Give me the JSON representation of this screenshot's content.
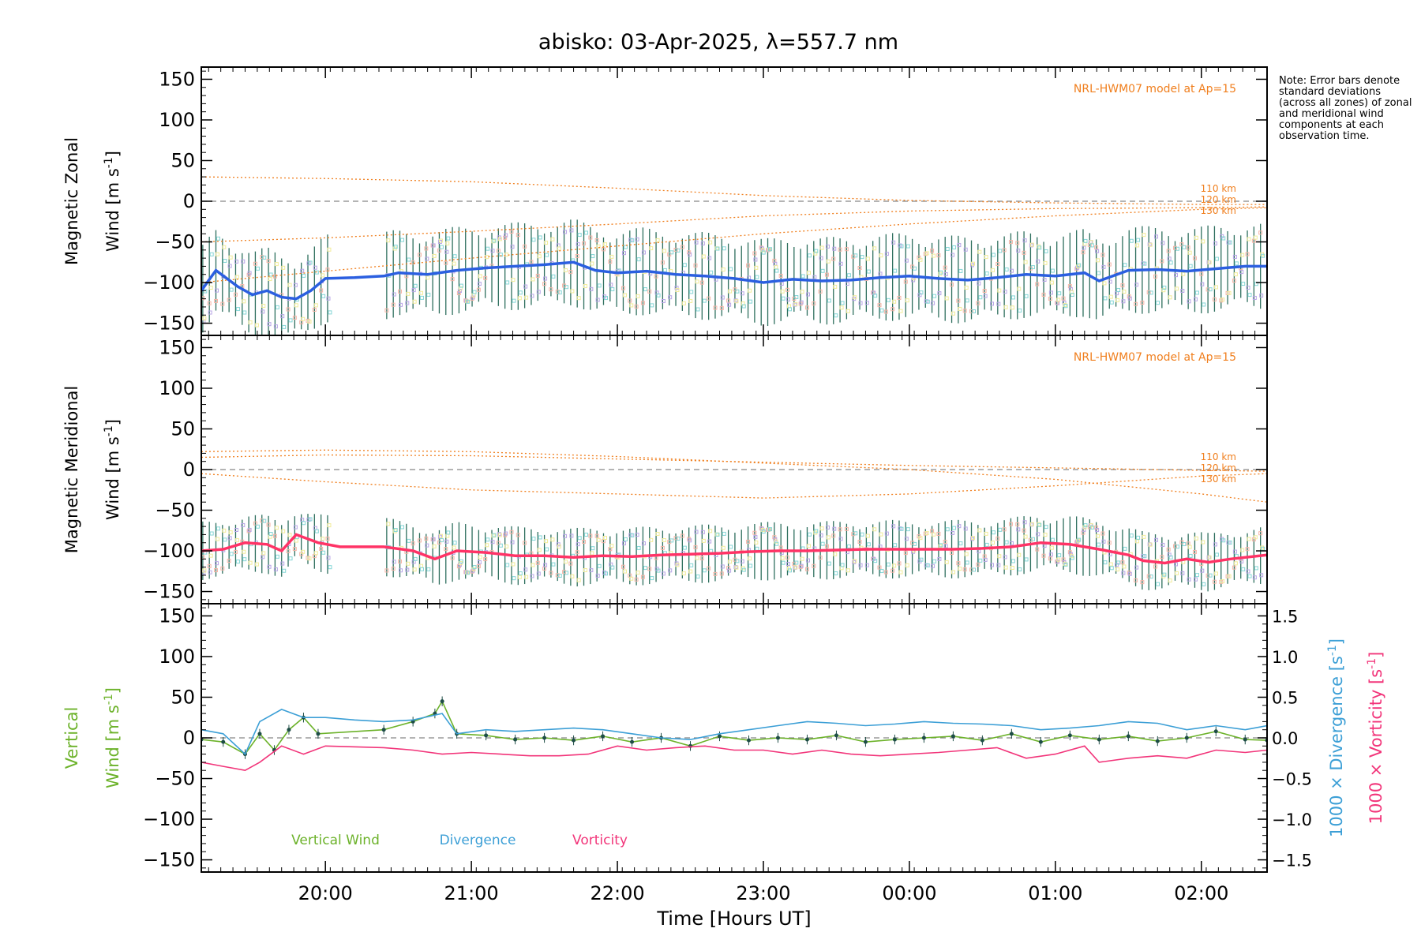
{
  "title": "abisko: 03-Apr-2025, λ=557.7 nm",
  "note": "Note: Error bars denote standard deviations (across all zones) of zonal and meridional wind components at each observation time.",
  "colors": {
    "model": "#f07f1e",
    "zonal_line": "#2b5fe0",
    "meridional_line": "#ff3366",
    "vertical": "#6cb22a",
    "divergence": "#3c9fd6",
    "vorticity": "#f2357a",
    "zero_line": "#888888",
    "error_bar": "#2e6f5e",
    "zone_pink": "#f6b6a8",
    "zone_purple": "#b8a6e6",
    "zone_yellow": "#f2ec9a",
    "zone_cyan": "#86d6d6"
  },
  "chart_data": [
    {
      "type": "line",
      "panel": "zonal",
      "ylabel_line1": "Magnetic Zonal",
      "ylabel_line2": "Wind [m s",
      "ylabel_sup": "-1",
      "ylabel_close": "]",
      "ylim": [
        -165,
        165
      ],
      "yticks": [
        150,
        100,
        50,
        0,
        -50,
        -100,
        -150
      ],
      "model_label": "NRL-HWM07 model at Ap=15",
      "model_series": [
        {
          "name": "110 km",
          "x": [
            19.15,
            20,
            21,
            22,
            23,
            24,
            25,
            26,
            26.45
          ],
          "values": [
            30,
            28,
            24,
            16,
            7,
            1,
            -2,
            -4,
            -4
          ]
        },
        {
          "name": "120 km",
          "x": [
            19.15,
            20,
            21,
            22,
            23,
            24,
            25,
            26,
            26.45
          ],
          "values": [
            -50,
            -45,
            -37,
            -28,
            -18,
            -12,
            -9,
            -8,
            -7
          ]
        },
        {
          "name": "130 km",
          "x": [
            19.15,
            20,
            21,
            22,
            23,
            24,
            25,
            26,
            26.45
          ],
          "values": [
            -100,
            -86,
            -70,
            -55,
            -40,
            -28,
            -18,
            -10,
            -8
          ]
        }
      ],
      "mean_series": {
        "name": "Zonal wind",
        "x": [
          19.15,
          19.25,
          19.4,
          19.5,
          19.6,
          19.7,
          19.8,
          19.9,
          20.0,
          20.2,
          20.4,
          20.5,
          20.7,
          20.9,
          21.1,
          21.3,
          21.5,
          21.7,
          21.85,
          22.0,
          22.2,
          22.4,
          22.6,
          22.8,
          23.0,
          23.2,
          23.4,
          23.6,
          23.8,
          24.0,
          24.2,
          24.4,
          24.6,
          24.8,
          25.0,
          25.2,
          25.3,
          25.5,
          25.7,
          25.9,
          26.1,
          26.3,
          26.45
        ],
        "values": [
          -110,
          -85,
          -105,
          -115,
          -110,
          -118,
          -120,
          -110,
          -95,
          -94,
          -92,
          -88,
          -90,
          -85,
          -82,
          -80,
          -78,
          -75,
          -85,
          -88,
          -86,
          -90,
          -92,
          -95,
          -100,
          -96,
          -98,
          -97,
          -94,
          -92,
          -95,
          -97,
          -94,
          -90,
          -92,
          -88,
          -98,
          -85,
          -84,
          -86,
          -83,
          -80,
          -80
        ]
      },
      "error_bar_half_width": 45
    },
    {
      "type": "line",
      "panel": "meridional",
      "ylabel_line1": "Magnetic Meridional",
      "ylabel_line2": "Wind [m s",
      "ylabel_sup": "-1",
      "ylabel_close": "]",
      "ylim": [
        -165,
        165
      ],
      "yticks": [
        150,
        100,
        50,
        0,
        -50,
        -100,
        -150
      ],
      "model_label": "NRL-HWM07 model at Ap=15",
      "model_series": [
        {
          "name": "110 km",
          "x": [
            19.15,
            20,
            21,
            22,
            23,
            24,
            25,
            26,
            26.45
          ],
          "values": [
            22,
            24,
            22,
            16,
            8,
            0,
            -12,
            -30,
            -40
          ]
        },
        {
          "name": "120 km",
          "x": [
            19.15,
            20,
            21,
            22,
            23,
            24,
            25,
            26,
            26.45
          ],
          "values": [
            15,
            18,
            17,
            13,
            9,
            5,
            2,
            -1,
            -2
          ]
        },
        {
          "name": "130 km",
          "x": [
            19.15,
            20,
            21,
            22,
            23,
            24,
            25,
            26,
            26.45
          ],
          "values": [
            -5,
            -15,
            -25,
            -30,
            -35,
            -30,
            -20,
            -8,
            -5
          ]
        }
      ],
      "mean_series": {
        "name": "Meridional wind",
        "x": [
          19.15,
          19.3,
          19.45,
          19.6,
          19.7,
          19.8,
          19.95,
          20.1,
          20.4,
          20.6,
          20.75,
          20.9,
          21.1,
          21.3,
          21.5,
          21.7,
          21.9,
          22.1,
          22.3,
          22.5,
          22.7,
          22.9,
          23.1,
          23.3,
          23.5,
          23.7,
          23.9,
          24.1,
          24.3,
          24.5,
          24.7,
          24.9,
          25.1,
          25.3,
          25.5,
          25.6,
          25.75,
          25.9,
          26.05,
          26.2,
          26.45
        ],
        "values": [
          -100,
          -98,
          -90,
          -92,
          -100,
          -80,
          -90,
          -95,
          -95,
          -100,
          -110,
          -100,
          -102,
          -106,
          -106,
          -108,
          -106,
          -107,
          -105,
          -104,
          -103,
          -101,
          -100,
          -100,
          -99,
          -98,
          -98,
          -98,
          -98,
          -97,
          -95,
          -90,
          -92,
          -98,
          -105,
          -112,
          -115,
          -110,
          -114,
          -110,
          -105
        ]
      },
      "error_bar_half_width": 30
    },
    {
      "type": "line",
      "panel": "vertical",
      "ylabel_line1": "Vertical",
      "ylabel_line2": "Wind [m s",
      "ylabel_sup": "-1",
      "ylabel_close": "]",
      "ylim": [
        -165,
        165
      ],
      "yticks": [
        150,
        100,
        50,
        0,
        -50,
        -100,
        -150
      ],
      "y2label_div": "1000 × Divergence [s",
      "y2label_vor": "1000 × Vorticity [s",
      "y2label_sup": "-1",
      "y2label_close": "]",
      "y2ticks": [
        1.5,
        1.0,
        0.5,
        0.0,
        -0.5,
        -1.0,
        -1.5
      ],
      "y2tick_labels": [
        "1.5",
        "1.0",
        "0.5",
        "0.0",
        "−0.5",
        "−1.0",
        "−1.5"
      ],
      "y2lim": [
        -1.65,
        1.65
      ],
      "legend": [
        "Vertical Wind",
        "Divergence",
        "Vorticity"
      ],
      "series": [
        {
          "name": "Vertical Wind",
          "x": [
            19.15,
            19.3,
            19.45,
            19.55,
            19.65,
            19.75,
            19.85,
            19.95,
            20.4,
            20.6,
            20.75,
            20.8,
            20.9,
            21.1,
            21.3,
            21.5,
            21.7,
            21.9,
            22.1,
            22.3,
            22.5,
            22.7,
            22.9,
            23.1,
            23.3,
            23.5,
            23.7,
            23.9,
            24.1,
            24.3,
            24.5,
            24.7,
            24.9,
            25.1,
            25.3,
            25.5,
            25.7,
            25.9,
            26.1,
            26.3,
            26.45
          ],
          "values": [
            -2,
            -5,
            -20,
            5,
            -15,
            10,
            25,
            5,
            10,
            20,
            30,
            45,
            5,
            3,
            -2,
            0,
            -3,
            2,
            -5,
            0,
            -10,
            2,
            -3,
            0,
            -2,
            3,
            -5,
            -2,
            0,
            2,
            -3,
            5,
            -5,
            3,
            -2,
            2,
            -4,
            0,
            8,
            -2,
            -3
          ]
        },
        {
          "name": "Divergence",
          "x": [
            19.15,
            19.3,
            19.45,
            19.55,
            19.7,
            19.85,
            20.0,
            20.2,
            20.4,
            20.6,
            20.8,
            20.9,
            21.1,
            21.3,
            21.5,
            21.7,
            21.9,
            22.1,
            22.3,
            22.5,
            22.7,
            22.9,
            23.1,
            23.3,
            23.5,
            23.7,
            23.9,
            24.1,
            24.3,
            24.5,
            24.7,
            24.9,
            25.1,
            25.3,
            25.5,
            25.7,
            25.9,
            26.1,
            26.3,
            26.45
          ],
          "values": [
            0.1,
            0.05,
            -0.2,
            0.2,
            0.35,
            0.25,
            0.25,
            0.22,
            0.2,
            0.22,
            0.3,
            0.05,
            0.1,
            0.08,
            0.1,
            0.12,
            0.1,
            0.05,
            0.0,
            -0.02,
            0.05,
            0.1,
            0.15,
            0.2,
            0.18,
            0.15,
            0.17,
            0.2,
            0.18,
            0.17,
            0.15,
            0.1,
            0.12,
            0.15,
            0.2,
            0.18,
            0.1,
            0.15,
            0.1,
            0.15
          ]
        },
        {
          "name": "Vorticity",
          "x": [
            19.15,
            19.3,
            19.45,
            19.55,
            19.7,
            19.85,
            20.0,
            20.4,
            20.6,
            20.8,
            21.0,
            21.2,
            21.4,
            21.6,
            21.8,
            22.0,
            22.2,
            22.4,
            22.6,
            22.8,
            23.0,
            23.2,
            23.4,
            23.6,
            23.8,
            24.0,
            24.2,
            24.4,
            24.6,
            24.8,
            25.0,
            25.2,
            25.3,
            25.5,
            25.7,
            25.9,
            26.1,
            26.3,
            26.45
          ],
          "values": [
            -0.3,
            -0.35,
            -0.4,
            -0.3,
            -0.1,
            -0.2,
            -0.1,
            -0.12,
            -0.15,
            -0.2,
            -0.18,
            -0.2,
            -0.22,
            -0.22,
            -0.2,
            -0.1,
            -0.15,
            -0.12,
            -0.1,
            -0.15,
            -0.15,
            -0.2,
            -0.15,
            -0.2,
            -0.22,
            -0.2,
            -0.18,
            -0.15,
            -0.12,
            -0.25,
            -0.2,
            -0.1,
            -0.3,
            -0.25,
            -0.22,
            -0.25,
            -0.15,
            -0.18,
            -0.15
          ]
        }
      ]
    }
  ],
  "xaxis": {
    "label": "Time [Hours UT]",
    "range": [
      19.15,
      26.45
    ],
    "ticks": [
      20,
      21,
      22,
      23,
      24,
      25,
      26
    ],
    "tick_labels": [
      "20:00",
      "21:00",
      "22:00",
      "23:00",
      "00:00",
      "01:00",
      "02:00"
    ]
  }
}
